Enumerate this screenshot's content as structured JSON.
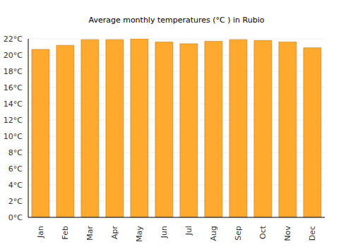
{
  "chart_data": {
    "type": "bar",
    "title": "Average monthly temperatures (°C ) in Rubio",
    "categories": [
      "Jan",
      "Feb",
      "Mar",
      "Apr",
      "May",
      "Jun",
      "Jul",
      "Aug",
      "Sep",
      "Oct",
      "Nov",
      "Dec"
    ],
    "values": [
      20.7,
      21.2,
      21.9,
      21.9,
      22.0,
      21.6,
      21.4,
      21.7,
      21.9,
      21.8,
      21.6,
      20.9
    ],
    "color": "#ffa92e",
    "ylim": [
      0,
      22
    ],
    "yticks": [
      {
        "value": 0,
        "label": "0°C"
      },
      {
        "value": 2,
        "label": "2°C"
      },
      {
        "value": 4,
        "label": "4°C"
      },
      {
        "value": 6,
        "label": "6°C"
      },
      {
        "value": 8,
        "label": "8°C"
      },
      {
        "value": 10,
        "label": "10°C"
      },
      {
        "value": 12,
        "label": "12°C"
      },
      {
        "value": 14,
        "label": "14°C"
      },
      {
        "value": 16,
        "label": "16°C"
      },
      {
        "value": 18,
        "label": "18°C"
      },
      {
        "value": 20,
        "label": "20°C"
      },
      {
        "value": 22,
        "label": "22°C"
      }
    ],
    "grid": true
  }
}
